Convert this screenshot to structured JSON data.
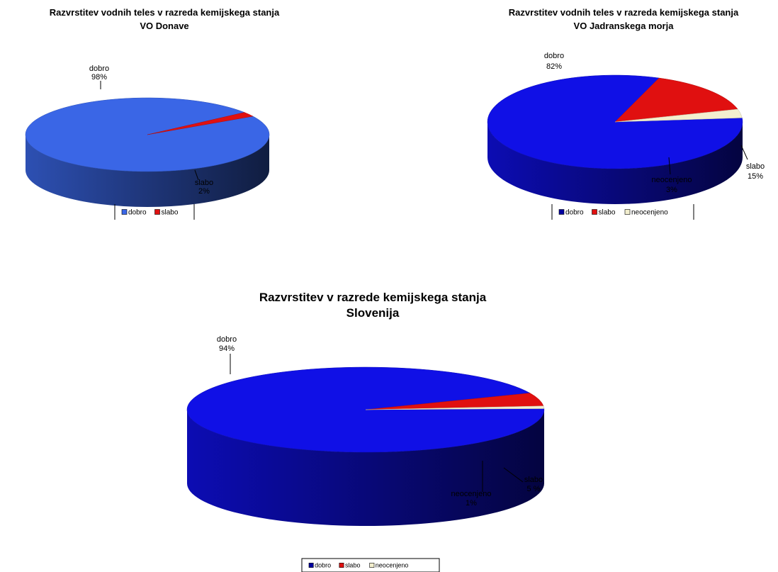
{
  "chart_data": [
    {
      "type": "pie",
      "title": "Razvrstitev vodnih teles v razreda kemijskega stanja",
      "subtitle": "VO Donave",
      "categories": [
        "dobro",
        "slabo"
      ],
      "values": [
        98,
        2
      ],
      "value_labels": [
        "98%",
        "2%"
      ],
      "colors": [
        "#3a66e6",
        "#e01010"
      ],
      "legend": [
        "dobro",
        "slabo"
      ],
      "legend_position": "bottom"
    },
    {
      "type": "pie",
      "title": "Razvrstitev vodnih teles v razreda kemijskega stanja",
      "subtitle": "VO Jadranskega morja",
      "categories": [
        "dobro",
        "slabo",
        "neocenjeno"
      ],
      "values": [
        82,
        15,
        3
      ],
      "value_labels": [
        "82%",
        "15%",
        "3%"
      ],
      "colors": [
        "#1010e6",
        "#e01010",
        "#f3efcf"
      ],
      "legend": [
        "dobro",
        "slabo",
        "neocenjeno"
      ],
      "legend_position": "bottom"
    },
    {
      "type": "pie",
      "title": "Razvrstitev v razrede kemijskega stanja",
      "subtitle": "Slovenija",
      "categories": [
        "dobro",
        "slabo",
        "neocenjeno"
      ],
      "values": [
        94,
        5,
        1
      ],
      "value_labels": [
        "94%",
        "5 %",
        "1%"
      ],
      "colors": [
        "#1010e6",
        "#e01010",
        "#f3efcf"
      ],
      "legend": [
        "dobro",
        "slabo",
        "neocenjeno"
      ],
      "legend_position": "bottom"
    }
  ]
}
